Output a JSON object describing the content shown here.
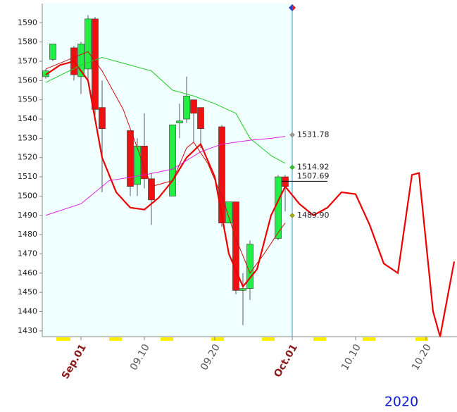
{
  "chart_data": {
    "type": "candlestick",
    "year": "2020",
    "ylim": [
      1427,
      1600
    ],
    "yticks": [
      1430,
      1440,
      1450,
      1460,
      1470,
      1480,
      1490,
      1500,
      1510,
      1520,
      1530,
      1540,
      1550,
      1560,
      1570,
      1580,
      1590
    ],
    "xticks": [
      {
        "value": "09.01",
        "label": "Sep.01"
      },
      "09.10",
      "09.20",
      {
        "value": "10.01",
        "label": "Oct.01"
      },
      "10.10",
      "10.20"
    ],
    "tick_color": "#555555",
    "month_tick_color": "#8b1a1a",
    "up_color": "#22ee44",
    "down_color": "#ee1111",
    "candles": {
      "x": [
        "08.27",
        "08.28",
        "08.31",
        "09.01",
        "09.02",
        "09.03",
        "09.04",
        "09.08",
        "09.09",
        "09.10",
        "09.11",
        "09.14",
        "09.15",
        "09.16",
        "09.17",
        "09.18",
        "09.21",
        "09.22",
        "09.23",
        "09.24",
        "09.25",
        "09.29",
        "09.30"
      ],
      "open": [
        1562,
        1571,
        1577,
        1562,
        1566,
        1592,
        1546,
        1534,
        1506,
        1526,
        1509,
        1500,
        1538,
        1540,
        1550,
        1546,
        1536,
        1486,
        1497,
        1451,
        1452,
        1478,
        1510
      ],
      "high": [
        1566,
        1579,
        1578,
        1580,
        1594,
        1593,
        1560,
        1534,
        1530,
        1543,
        1512,
        1537,
        1548,
        1562,
        1549,
        1540,
        1537,
        1497,
        1497,
        1460,
        1477,
        1511,
        1511
      ],
      "low": [
        1561,
        1570,
        1560,
        1553,
        1560,
        1542,
        1502,
        1500,
        1500,
        1504,
        1485,
        1500,
        1530,
        1538,
        1528,
        1525,
        1484,
        1486,
        1449,
        1433,
        1446,
        1477,
        1492
      ],
      "close": [
        1565,
        1579,
        1563,
        1579,
        1592,
        1545,
        1535,
        1505,
        1526,
        1509,
        1498,
        1537,
        1539,
        1552,
        1543,
        1535,
        1486,
        1497,
        1451,
        1452,
        1475,
        1510,
        1505
      ]
    },
    "lines": [
      {
        "color": "#ee0000",
        "width": 2.2,
        "x": [
          "08.27",
          "08.29",
          "08.31",
          "09.02",
          "09.04",
          "09.06",
          "09.08",
          "09.10",
          "09.12",
          "09.14",
          "09.16",
          "09.18",
          "09.20",
          "09.22",
          "09.24",
          "09.26",
          "09.28",
          "09.30",
          "10.02",
          "10.04",
          "10.06",
          "10.08",
          "10.10",
          "10.12",
          "10.14",
          "10.16",
          "10.18",
          "10.19",
          "10.21",
          "10.22",
          "10.24"
        ],
        "values": [
          1563,
          1568,
          1570,
          1560,
          1520,
          1502,
          1494,
          1493,
          1499,
          1508,
          1520,
          1527,
          1510,
          1470,
          1453,
          1462,
          1490,
          1505,
          1496,
          1490,
          1494,
          1502,
          1501,
          1485,
          1465,
          1460,
          1511,
          1512,
          1440,
          1427,
          1466
        ]
      },
      {
        "color": "#22cc22",
        "width": 1,
        "x": [
          "08.27",
          "09.01",
          "09.04",
          "09.08",
          "09.11",
          "09.14",
          "09.17",
          "09.20",
          "09.23",
          "09.25",
          "09.28",
          "09.30"
        ],
        "values": [
          1559,
          1568,
          1572,
          1568,
          1565,
          1555,
          1552,
          1548,
          1543,
          1530,
          1521,
          1517
        ]
      },
      {
        "color": "#dd22dd",
        "width": 1,
        "x": [
          "08.27",
          "09.01",
          "09.05",
          "09.10",
          "09.14",
          "09.18",
          "09.21",
          "09.25",
          "09.28",
          "09.30"
        ],
        "values": [
          1490,
          1496,
          1508,
          1511,
          1514,
          1523,
          1527,
          1529,
          1530,
          1531
        ]
      },
      {
        "color": "#cc1111",
        "width": 1,
        "x": [
          "08.27",
          "08.31",
          "09.02",
          "09.04",
          "09.07",
          "09.09",
          "09.11",
          "09.14",
          "09.16",
          "09.17",
          "09.19",
          "09.21",
          "09.23",
          "09.25",
          "09.27",
          "09.29",
          "09.30"
        ],
        "values": [
          1566,
          1572,
          1575,
          1565,
          1545,
          1525,
          1505,
          1508,
          1525,
          1528,
          1517,
          1500,
          1478,
          1460,
          1470,
          1481,
          1486
        ]
      }
    ],
    "annotations": [
      {
        "x": "10.01",
        "value": 1531.78,
        "color": "#999999",
        "marker": "diamond"
      },
      {
        "x": "10.01",
        "value": 1514.92,
        "color": "#22cc22",
        "marker": "diamond"
      },
      {
        "x": "10.01",
        "value": 1507.69,
        "color": "#000000",
        "marker": "line"
      },
      {
        "x": "10.01",
        "value": 1489.9,
        "label": "1489.90",
        "color": "#aaaa00",
        "marker": "diamond"
      }
    ]
  }
}
